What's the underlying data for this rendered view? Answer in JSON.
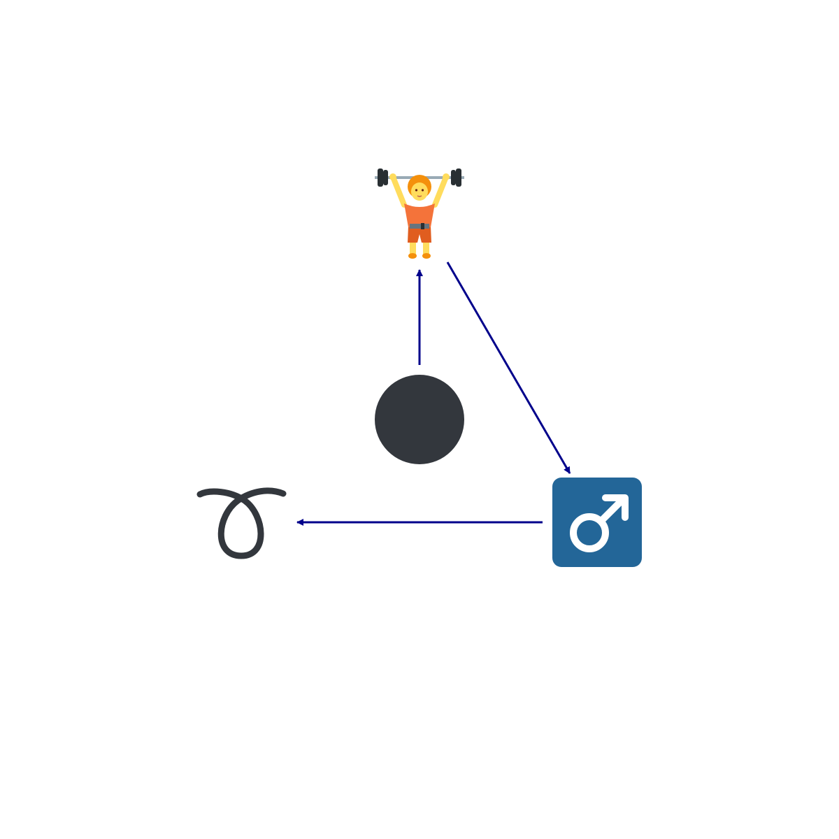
{
  "diagram": {
    "edge_color": "#00008b",
    "nodes": [
      {
        "id": "weightlifter",
        "icon": "person-lifting-weights-icon"
      },
      {
        "id": "black-circle",
        "icon": "black-circle-icon",
        "color": "#33373d"
      },
      {
        "id": "male-sign",
        "icon": "male-sign-icon",
        "color": "#236698"
      },
      {
        "id": "curly-loop",
        "icon": "curly-loop-icon",
        "color": "#33373d"
      }
    ],
    "edges": [
      {
        "from": "black-circle",
        "to": "weightlifter"
      },
      {
        "from": "weightlifter",
        "to": "male-sign"
      },
      {
        "from": "male-sign",
        "to": "curly-loop"
      }
    ]
  }
}
